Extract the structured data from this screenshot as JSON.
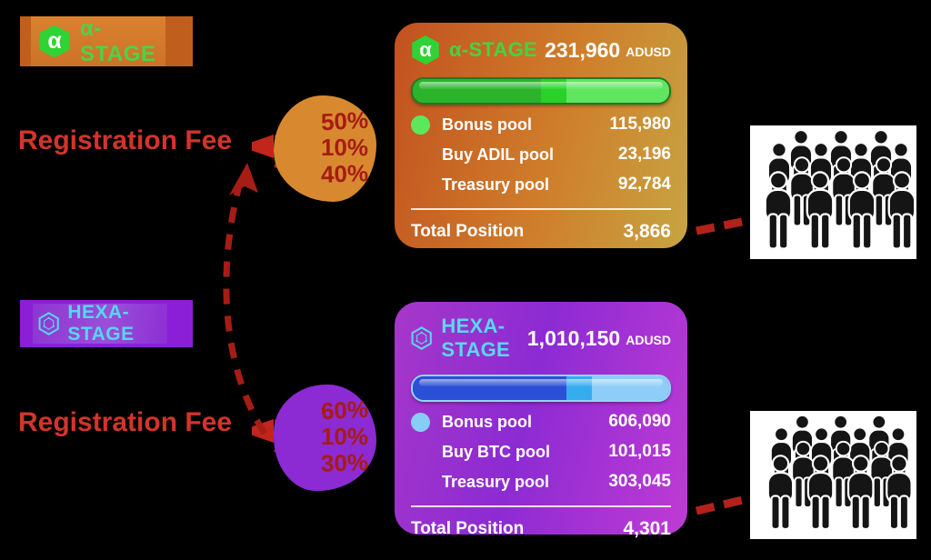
{
  "alpha": {
    "badge": {
      "label": "α-STAGE",
      "symbol": "α"
    },
    "fee_label": "Registration Fee",
    "fee_percentages": [
      "50%",
      "10%",
      "40%"
    ],
    "card": {
      "icon_symbol": "α",
      "title": "α-STAGE",
      "amount": "231,960",
      "currency": "ADUSD",
      "progress": [
        50,
        10,
        40
      ],
      "pools": [
        {
          "label": "Bonus pool",
          "value": "115,980"
        },
        {
          "label": "Buy ADIL pool",
          "value": "23,196"
        },
        {
          "label": "Treasury pool",
          "value": "92,784"
        }
      ],
      "total_label": "Total Position",
      "total_value": "3,866"
    }
  },
  "hexa": {
    "badge": {
      "label": "HEXA-STAGE"
    },
    "fee_label": "Registration Fee",
    "fee_percentages": [
      "60%",
      "10%",
      "30%"
    ],
    "card": {
      "title": "HEXA-STAGE",
      "amount": "1,010,150",
      "currency": "ADUSD",
      "progress": [
        60,
        10,
        30
      ],
      "pools": [
        {
          "label": "Bonus pool",
          "value": "606,090"
        },
        {
          "label": "Buy BTC pool",
          "value": "101,015"
        },
        {
          "label": "Treasury pool",
          "value": "303,045"
        }
      ],
      "total_label": "Total Position",
      "total_value": "4,301"
    }
  },
  "icons": {
    "alpha_hexagon": "green-hexagon-alpha-icon",
    "hexa_hexagon": "cyan-hexagon-molecule-icon",
    "crowd": "crowd-of-people-icon",
    "megaphone": "red-cone-pointer-icon",
    "arrow": "dashed-curved-arrow"
  },
  "colors": {
    "background": "#000000",
    "annotation_red": "#d2342b",
    "percent_red": "#a51c12",
    "alpha_accent_green": "#44d343",
    "alpha_card_from": "#c2511f",
    "alpha_card_to": "#c7a442",
    "alpha_segments": [
      "#2cb32c",
      "#29d129",
      "#5fe55f"
    ],
    "hexa_accent_cyan": "#59d9f2",
    "hexa_card_from": "#a637c9",
    "hexa_card_to": "#bf3bd4",
    "hexa_segments": [
      "#2b4fd7",
      "#36acf0",
      "#8ecdf7"
    ]
  }
}
